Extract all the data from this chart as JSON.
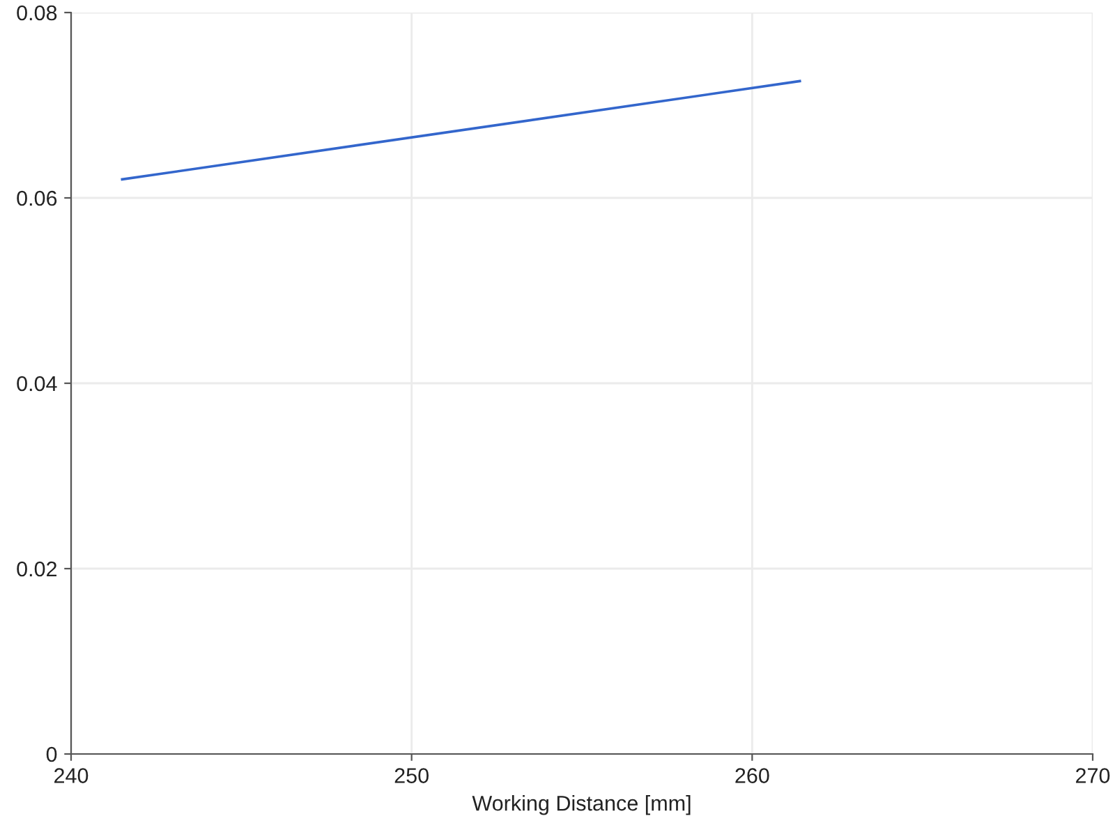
{
  "chart_data": {
    "type": "line",
    "xlabel": "Working Distance [mm]",
    "x": [
      241.5,
      261.4
    ],
    "series": [
      {
        "color": "#3366cc",
        "values": [
          0.062,
          0.0726
        ]
      }
    ],
    "xlim": [
      240,
      270
    ],
    "xticks": [
      240,
      250,
      260,
      270
    ],
    "ylim": [
      0,
      0.08
    ],
    "yticks": [
      0,
      0.02,
      0.04,
      0.06,
      0.08
    ],
    "grid": true,
    "marker": "none",
    "line_style": "solid"
  }
}
